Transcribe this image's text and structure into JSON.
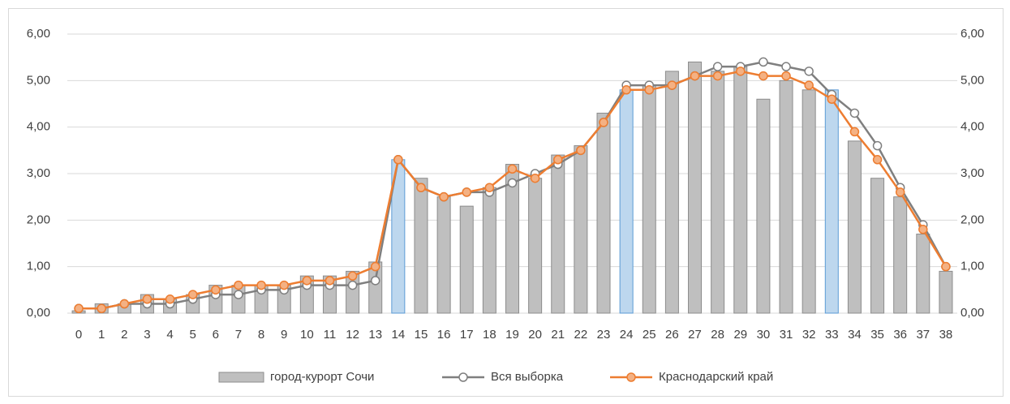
{
  "chart_data": {
    "type": "bar_line",
    "categories": [
      "0",
      "1",
      "2",
      "3",
      "4",
      "5",
      "6",
      "7",
      "8",
      "9",
      "10",
      "11",
      "12",
      "13",
      "14",
      "15",
      "16",
      "17",
      "18",
      "19",
      "20",
      "21",
      "22",
      "23",
      "24",
      "25",
      "26",
      "27",
      "28",
      "29",
      "30",
      "31",
      "32",
      "33",
      "34",
      "35",
      "36",
      "37",
      "38"
    ],
    "series": [
      {
        "name": "город-курорт Сочи",
        "type": "bar",
        "color": "#bfbfbf",
        "colors": [
          "#bfbfbf",
          "#bfbfbf",
          "#bfbfbf",
          "#bfbfbf",
          "#bfbfbf",
          "#bfbfbf",
          "#bfbfbf",
          "#bfbfbf",
          "#bfbfbf",
          "#bfbfbf",
          "#bfbfbf",
          "#bfbfbf",
          "#bfbfbf",
          "#bfbfbf",
          "#bdd7ee",
          "#bfbfbf",
          "#bfbfbf",
          "#bfbfbf",
          "#bfbfbf",
          "#bfbfbf",
          "#bfbfbf",
          "#bfbfbf",
          "#bfbfbf",
          "#bfbfbf",
          "#bdd7ee",
          "#bfbfbf",
          "#bfbfbf",
          "#bfbfbf",
          "#bfbfbf",
          "#bfbfbf",
          "#bfbfbf",
          "#bfbfbf",
          "#bfbfbf",
          "#bdd7ee",
          "#bfbfbf",
          "#bfbfbf",
          "#bfbfbf",
          "#bfbfbf",
          "#bfbfbf"
        ],
        "values": [
          0.05,
          0.2,
          0.2,
          0.4,
          0.3,
          0.4,
          0.6,
          0.6,
          0.6,
          0.6,
          0.8,
          0.8,
          0.9,
          1.1,
          3.3,
          2.9,
          2.5,
          2.3,
          2.7,
          3.2,
          2.9,
          3.4,
          3.6,
          4.3,
          4.8,
          4.9,
          5.2,
          5.4,
          5.2,
          5.3,
          4.6,
          5.0,
          4.8,
          4.8,
          3.7,
          2.9,
          2.5,
          1.7,
          0.9
        ]
      },
      {
        "name": "Вся выборка",
        "type": "line",
        "color": "#7f7f7f",
        "values": [
          0.1,
          0.1,
          0.2,
          0.2,
          0.2,
          0.3,
          0.4,
          0.4,
          0.5,
          0.5,
          0.6,
          0.6,
          0.6,
          0.7,
          3.3,
          2.7,
          2.5,
          2.6,
          2.6,
          2.8,
          3.0,
          3.2,
          3.5,
          4.1,
          4.9,
          4.9,
          4.9,
          5.1,
          5.3,
          5.3,
          5.4,
          5.3,
          5.2,
          4.7,
          4.3,
          3.6,
          2.7,
          1.9,
          1.0
        ]
      },
      {
        "name": "Краснодарский край",
        "type": "line",
        "color": "#ed7d31",
        "values": [
          0.1,
          0.1,
          0.2,
          0.3,
          0.3,
          0.4,
          0.5,
          0.6,
          0.6,
          0.6,
          0.7,
          0.7,
          0.8,
          1.0,
          3.3,
          2.7,
          2.5,
          2.6,
          2.7,
          3.1,
          2.9,
          3.3,
          3.5,
          4.1,
          4.8,
          4.8,
          4.9,
          5.1,
          5.1,
          5.2,
          5.1,
          5.1,
          4.9,
          4.6,
          3.9,
          3.3,
          2.6,
          1.8,
          1.0
        ]
      }
    ],
    "ylim": [
      0,
      6
    ],
    "yticks": [
      {
        "value": 0,
        "label": "0,00"
      },
      {
        "value": 1,
        "label": "1,00"
      },
      {
        "value": 2,
        "label": "2,00"
      },
      {
        "value": 3,
        "label": "3,00"
      },
      {
        "value": 4,
        "label": "4,00"
      },
      {
        "value": 5,
        "label": "5,00"
      },
      {
        "value": 6,
        "label": "6,00"
      }
    ],
    "y2lim": [
      0,
      6
    ],
    "y2ticks": [
      {
        "value": 0,
        "label": "0,00"
      },
      {
        "value": 1,
        "label": "1,00"
      },
      {
        "value": 2,
        "label": "2,00"
      },
      {
        "value": 3,
        "label": "3,00"
      },
      {
        "value": 4,
        "label": "4,00"
      },
      {
        "value": 5,
        "label": "5,00"
      },
      {
        "value": 6,
        "label": "6,00"
      }
    ],
    "grid": true,
    "legend": "bottom"
  }
}
